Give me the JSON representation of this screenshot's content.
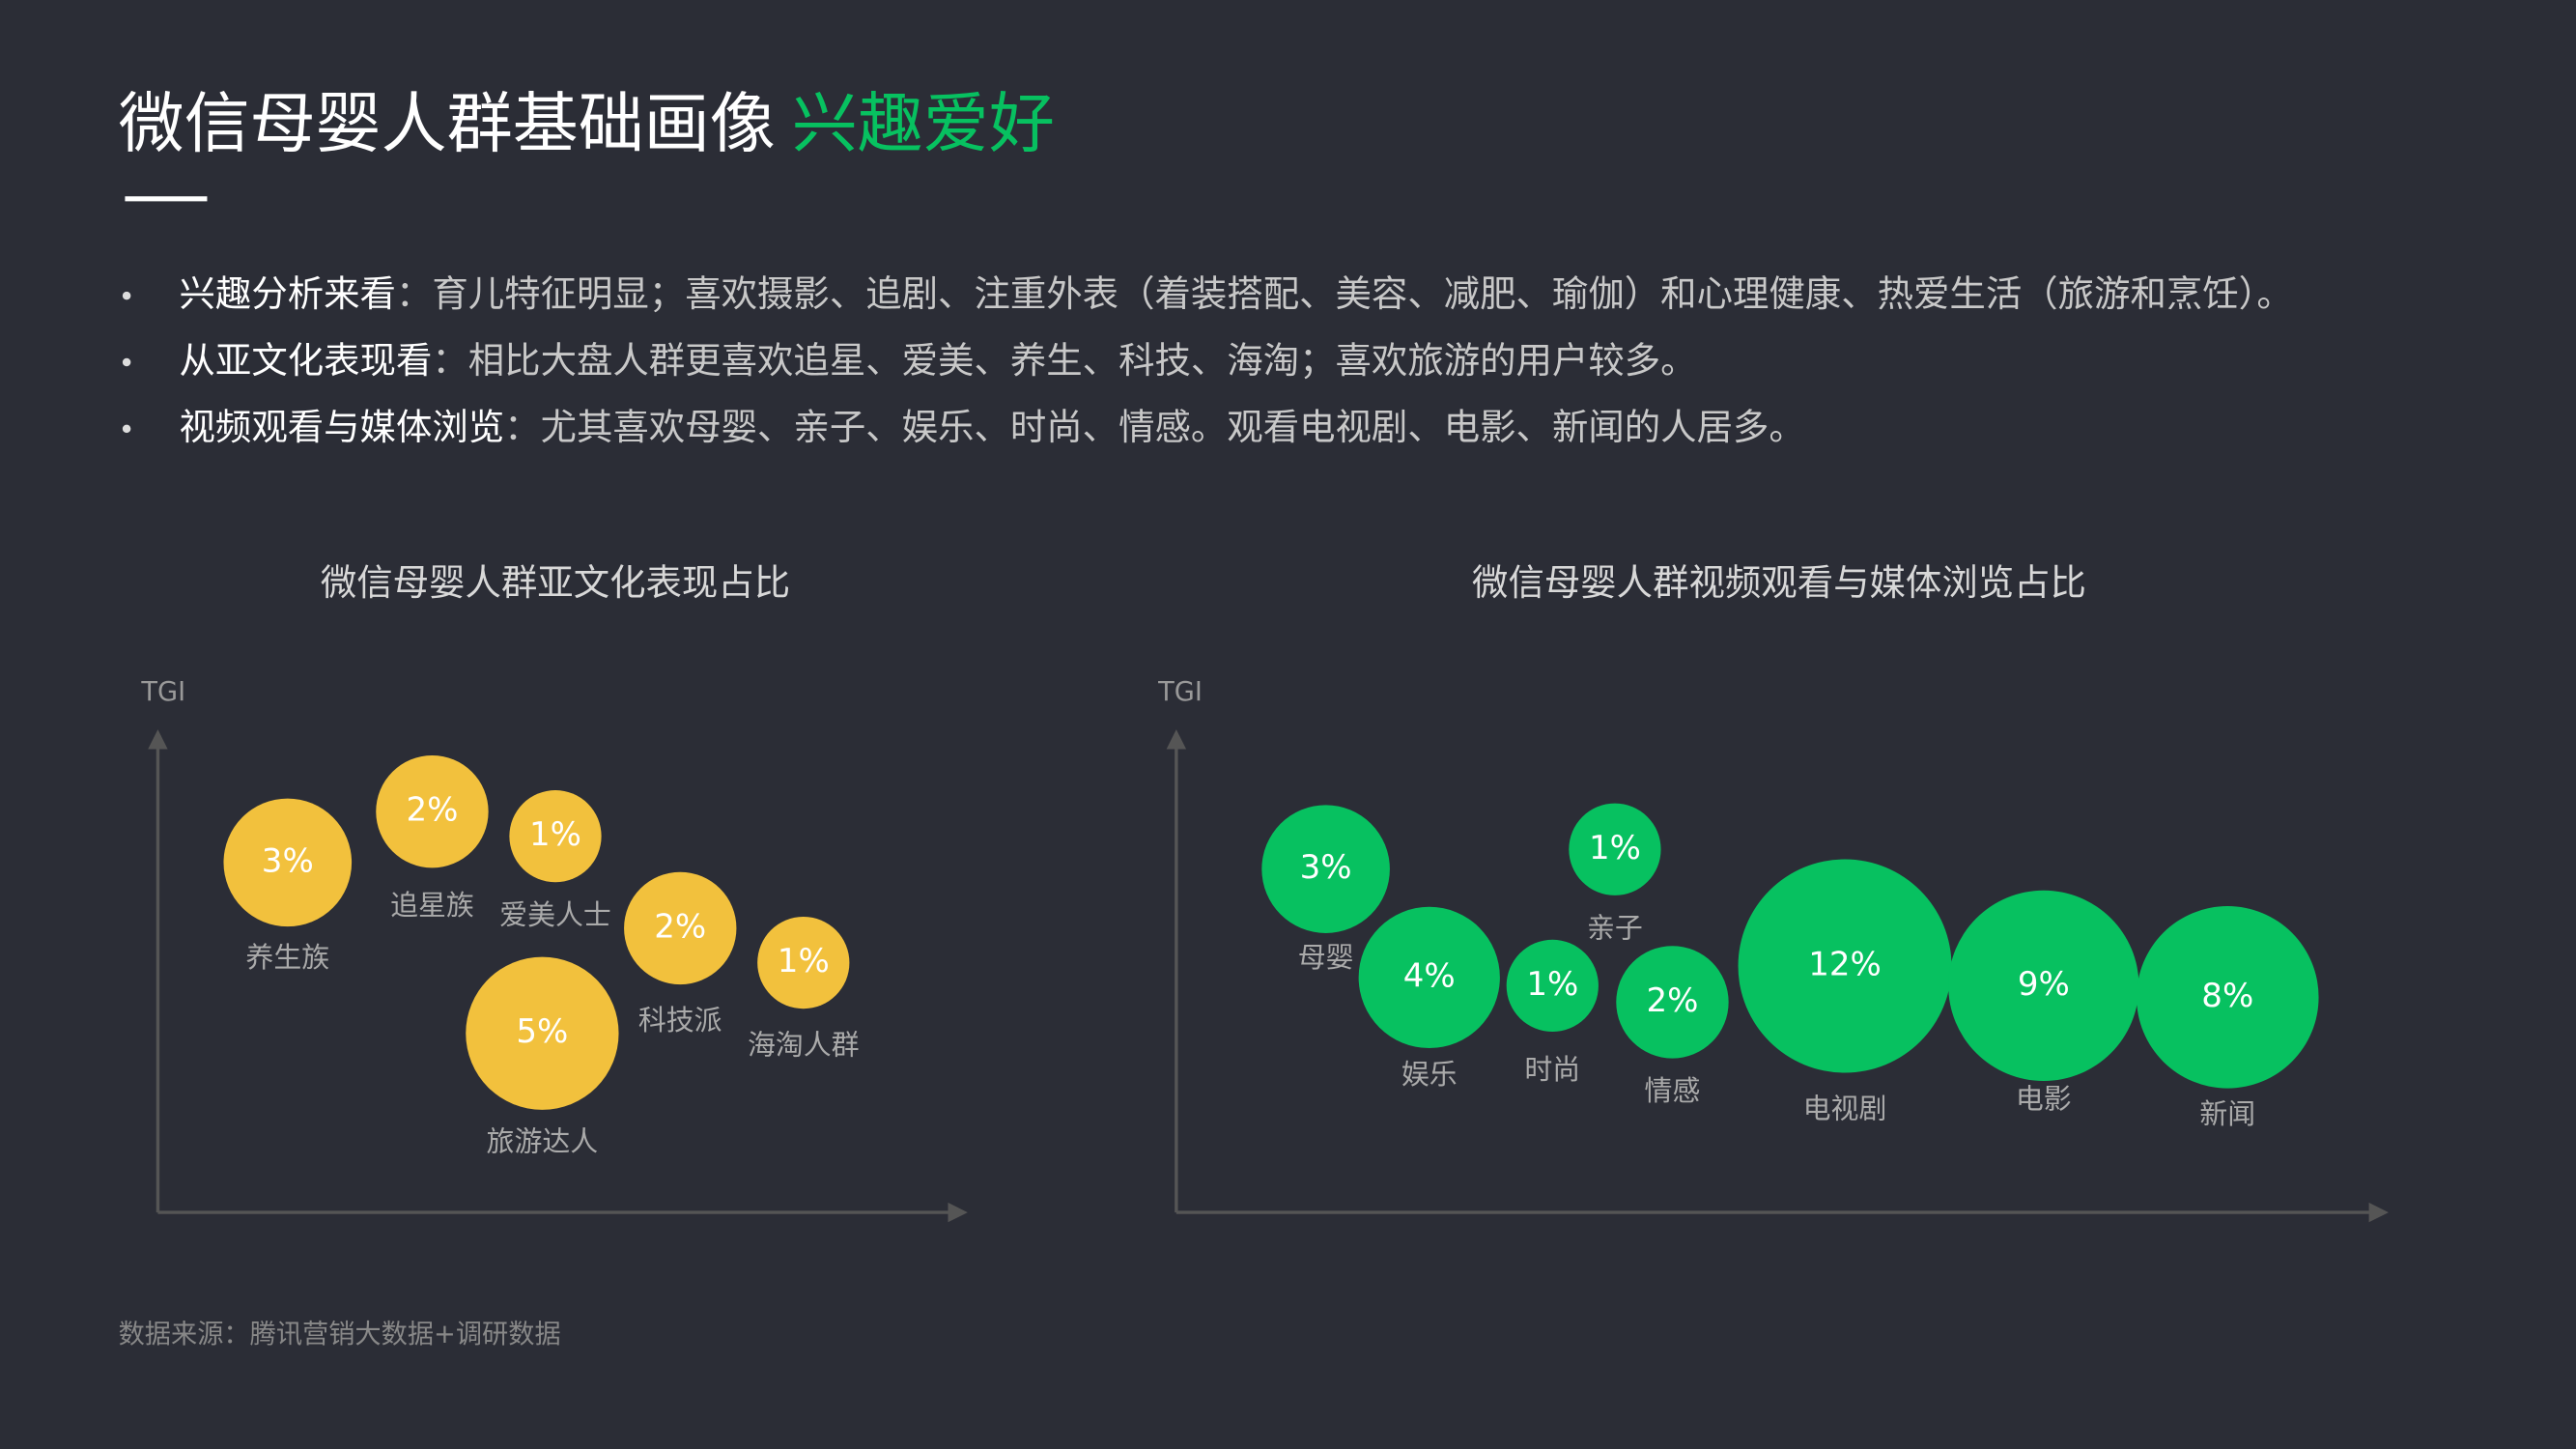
{
  "header": {
    "title": "微信母婴人群基础画像",
    "highlight": "兴趣爱好"
  },
  "bullets": [
    {
      "lead": "兴趣分析来看",
      "text": "：育儿特征明显；喜欢摄影、追剧、注重外表（着装搭配、美容、减肥、瑜伽）和心理健康、热爱生活（旅游和烹饪）。"
    },
    {
      "lead": "从亚文化表现看",
      "text": "：相比大盘人群更喜欢追星、爱美、养生、科技、海淘；喜欢旅游的用户较多。"
    },
    {
      "lead": "视频观看与媒体浏览",
      "text": "：尤其喜欢母婴、亲子、娱乐、时尚、情感。观看电视剧、电影、新闻的人居多。"
    }
  ],
  "chart_data": [
    {
      "type": "bubble",
      "title": "微信母婴人群亚文化表现占比",
      "y_label": "TGI",
      "color": "#f2c13d",
      "categories": [
        "养生族",
        "追星族",
        "爱美人士",
        "科技派",
        "海淘人群",
        "旅游达人"
      ],
      "values": [
        3,
        2,
        1,
        2,
        1,
        5
      ],
      "value_labels": [
        "3%",
        "2%",
        "1%",
        "2%",
        "1%",
        "5%"
      ]
    },
    {
      "type": "bubble",
      "title": "微信母婴人群视频观看与媒体浏览占比",
      "y_label": "TGI",
      "color": "#07c160",
      "categories": [
        "母婴",
        "娱乐",
        "时尚",
        "亲子",
        "情感",
        "电视剧",
        "电影",
        "新闻"
      ],
      "values": [
        3,
        4,
        1,
        1,
        2,
        12,
        9,
        8
      ],
      "value_labels": [
        "3%",
        "4%",
        "1%",
        "1%",
        "2%",
        "12%",
        "9%",
        "8%"
      ]
    }
  ],
  "source": "数据来源：腾讯营销大数据+调研数据"
}
